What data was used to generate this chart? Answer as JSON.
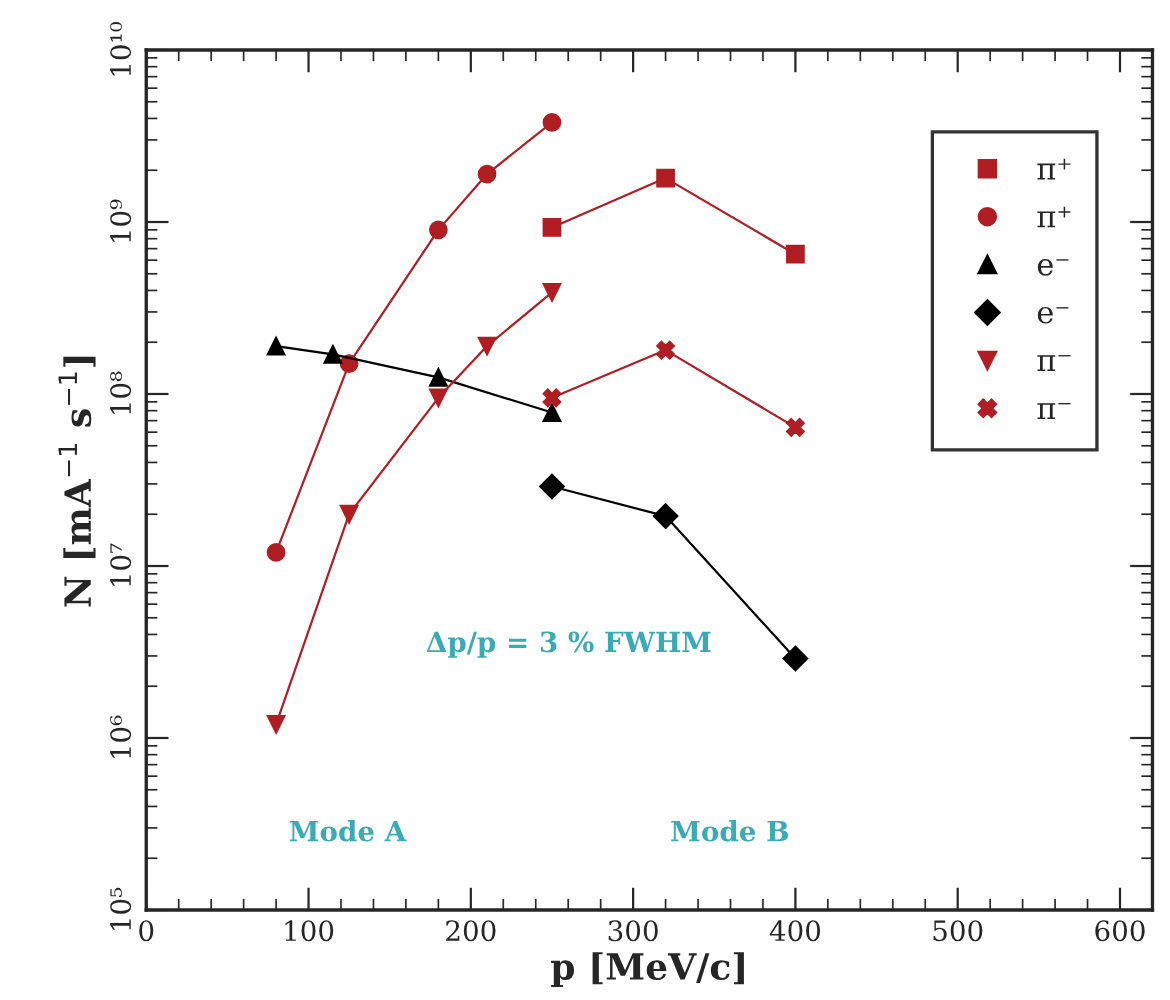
{
  "chart_data": {
    "type": "line",
    "xlabel": "p [MeV/c]",
    "ylabel": "N [mA$^{−1}$ s$^{−1}$]",
    "log": "y",
    "grid": false,
    "legend": "right",
    "line_style": "solid",
    "xlim": [
      0,
      620
    ],
    "xticks": [
      0,
      100,
      200,
      300,
      400,
      500,
      600
    ],
    "ylim": [
      100000,
      10000000000
    ],
    "yticks": [
      {
        "value": 100000,
        "label": "10⁵"
      },
      {
        "value": 1000000,
        "label": "10⁶"
      },
      {
        "value": 10000000,
        "label": "10⁷"
      },
      {
        "value": 100000000,
        "label": "10⁸"
      },
      {
        "value": 1000000000,
        "label": "10⁹"
      },
      {
        "value": 10000000000,
        "label": "10¹⁰"
      }
    ],
    "annotations": [
      "Δp/p = 3 % FWHM",
      "Mode A",
      "Mode B"
    ],
    "series": [
      {
        "name": "π⁺",
        "color": "#b01e23",
        "marker": "square",
        "x": [
          250,
          320,
          400
        ],
        "values": [
          930000000,
          1800000000,
          650000000
        ]
      },
      {
        "name": "π⁺",
        "color": "#b01e23",
        "marker": "circle",
        "x": [
          80,
          125,
          180,
          210,
          250
        ],
        "values": [
          12000000,
          150000000,
          900000000,
          1900000000,
          3800000000
        ]
      },
      {
        "name": "e⁻",
        "color": "#000000",
        "marker": "triangle",
        "x": [
          80,
          115,
          180,
          250
        ],
        "values": [
          190000000,
          170000000,
          125000000,
          78000000
        ]
      },
      {
        "name": "e⁻",
        "color": "#000000",
        "marker": "diamond",
        "x": [
          250,
          320,
          400
        ],
        "values": [
          29000000,
          19500000,
          2900000
        ]
      },
      {
        "name": "π⁻",
        "color": "#b01e23",
        "marker": "triangle",
        "x": [
          80,
          125,
          180,
          210,
          250
        ],
        "values": [
          1200000,
          20000000,
          95000000,
          190000000,
          390000000
        ]
      },
      {
        "name": "π⁻",
        "color": "#b01e23",
        "marker": "cross",
        "x": [
          250,
          320,
          400
        ],
        "values": [
          95000000,
          180000000,
          64000000
        ]
      }
    ]
  }
}
